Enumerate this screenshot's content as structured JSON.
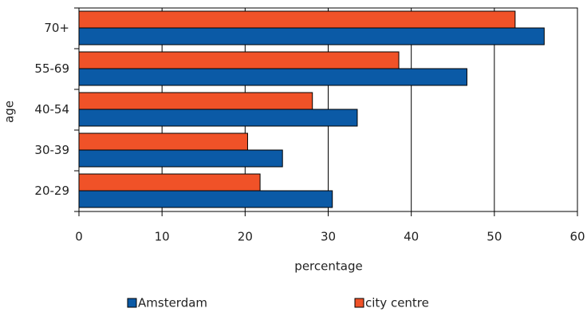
{
  "chart_data": {
    "type": "hbar",
    "x_label": "percentage",
    "y_label": "age",
    "categories": [
      "20-29",
      "30-39",
      "40-54",
      "55-69",
      "70+"
    ],
    "series": [
      {
        "name": "Amsterdam",
        "color": "#0b5aa6",
        "values": [
          30.5,
          24.5,
          33.5,
          46.7,
          56
        ]
      },
      {
        "name": "city centre",
        "color": "#f05228",
        "values": [
          21.8,
          20.3,
          28.1,
          38.5,
          52.5
        ]
      }
    ],
    "xlim": [
      0,
      60
    ],
    "xticks": [
      0,
      10,
      20,
      30,
      40,
      50,
      60
    ],
    "grid": true,
    "legend": "bottom"
  }
}
